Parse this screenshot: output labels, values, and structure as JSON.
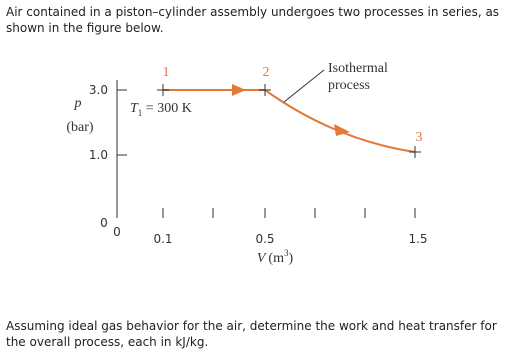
{
  "problem": {
    "intro": "Air contained in a piston–cylinder assembly undergoes two processes in series, as shown in the figure below.",
    "question": "Assuming ideal gas behavior for the air, determine the work and heat transfer for the overall process, each in kJ/kg."
  },
  "figure": {
    "y_axis": {
      "symbol": "p",
      "unit": "(bar)",
      "tick_labels": [
        "3.0",
        "1.0",
        "0"
      ]
    },
    "x_axis": {
      "symbol": "V",
      "unit_open": "(m",
      "unit_exponent": "3",
      "unit_close": ")",
      "tick_labels": [
        "0",
        "0.1",
        "0.5",
        "1.5"
      ]
    },
    "states": [
      "1",
      "2",
      "3"
    ],
    "temperature": {
      "symbol": "T",
      "subscript": "1",
      "rest": " = 300 K"
    },
    "annotation": [
      "Isothermal",
      "process"
    ]
  }
}
